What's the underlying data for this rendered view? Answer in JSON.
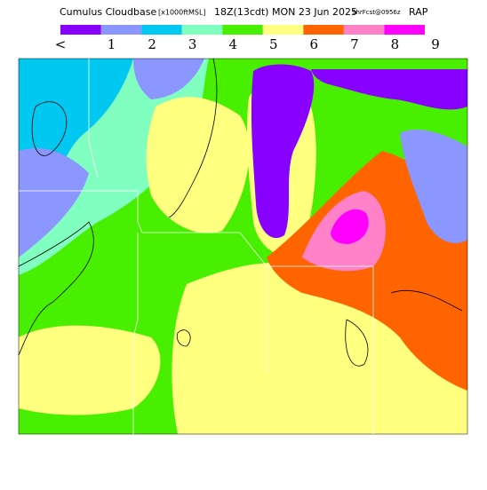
{
  "header": {
    "title_parts": [
      "Cumulus Cloudbase",
      "[x1000ftMSL]",
      "18Z(13cdt) MON 23 Jun 2025",
      "9hrFcst@0956z",
      "RAP"
    ]
  },
  "legend": {
    "colors": [
      "#8800ff",
      "#8c96ff",
      "#00c8f0",
      "#80ffc0",
      "#48f000",
      "#ffff80",
      "#ff6400",
      "#ff82c8",
      "#ff00ff"
    ],
    "labels": [
      "<",
      "1",
      "2",
      "3",
      "4",
      "5",
      "6",
      "7",
      "8",
      "9"
    ]
  }
}
